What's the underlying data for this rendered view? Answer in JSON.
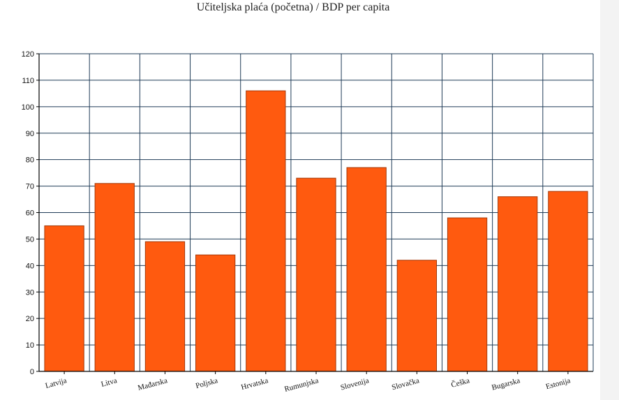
{
  "chart_data": {
    "type": "bar",
    "title": "Učiteljska plaća (početna) / BDP per capita",
    "xlabel": "",
    "ylabel": "",
    "categories": [
      "Latvija",
      "Litva",
      "Mađarska",
      "Poljska",
      "Hrvatska",
      "Rumunjska",
      "Slovenija",
      "Slovačka",
      "Češka",
      "Bugarska",
      "Estonija"
    ],
    "values": [
      55,
      71,
      49,
      44,
      106,
      73,
      77,
      42,
      58,
      66,
      68
    ],
    "ylim": [
      0,
      120
    ],
    "yticks": [
      0,
      10,
      20,
      30,
      40,
      50,
      60,
      70,
      80,
      90,
      100,
      110,
      120
    ],
    "grid": true,
    "legend": "none",
    "colors": {
      "bar_fill": "#ff5a0f",
      "bar_stroke": "#a33a0a",
      "grid": "#1f3b57",
      "axis": "#000000"
    }
  }
}
